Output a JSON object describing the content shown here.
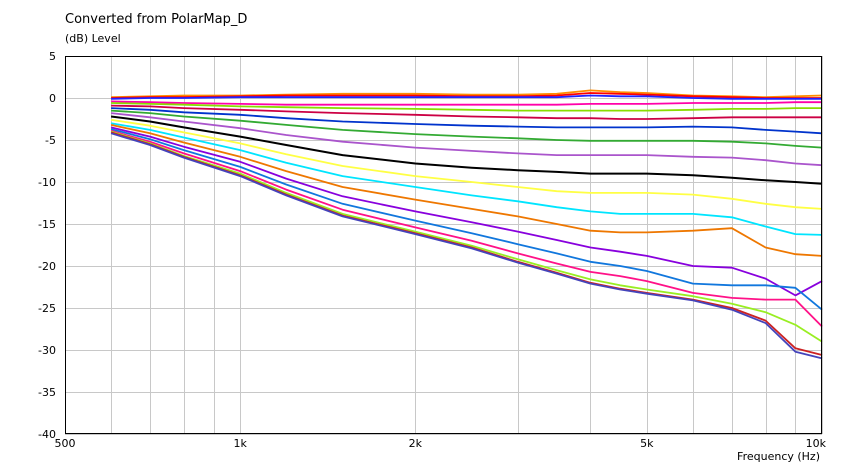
{
  "chart_data": {
    "type": "line",
    "title": "Converted from PolarMap_D",
    "ylabel": "(dB)  Level",
    "xlabel": "Frequency  (Hz)",
    "xscale": "log",
    "xlim": [
      500,
      10000
    ],
    "ylim": [
      -40,
      5
    ],
    "grid": true,
    "x_tick_labels": [
      {
        "value": 500,
        "label": "500"
      },
      {
        "value": 1000,
        "label": "1k"
      },
      {
        "value": 2000,
        "label": "2k"
      },
      {
        "value": 5000,
        "label": "5k"
      },
      {
        "value": 10000,
        "label": "10k"
      }
    ],
    "y_ticks": [
      5,
      0,
      -5,
      -10,
      -15,
      -20,
      -25,
      -30,
      -35,
      -40
    ],
    "x": [
      600,
      700,
      800,
      1000,
      1200,
      1500,
      2000,
      2500,
      3000,
      3500,
      4000,
      4500,
      5000,
      6000,
      7000,
      8000,
      9000,
      10000
    ],
    "series": [
      {
        "color": "#ff8c00",
        "values": [
          0.1,
          0.2,
          0.3,
          0.3,
          0.4,
          0.5,
          0.5,
          0.4,
          0.4,
          0.5,
          0.9,
          0.7,
          0.6,
          0.3,
          0.2,
          0.1,
          0.2,
          0.3
        ]
      },
      {
        "color": "#ff0000",
        "values": [
          0.0,
          0.1,
          0.1,
          0.2,
          0.3,
          0.3,
          0.3,
          0.2,
          0.2,
          0.3,
          0.6,
          0.5,
          0.4,
          0.2,
          0.1,
          0.0,
          0.0,
          0.0
        ]
      },
      {
        "color": "#2222ff",
        "values": [
          -0.1,
          0.0,
          0.0,
          0.1,
          0.1,
          0.1,
          0.1,
          0.1,
          0.1,
          0.1,
          0.3,
          0.2,
          0.2,
          0.0,
          -0.1,
          -0.1,
          -0.1,
          -0.1
        ]
      },
      {
        "color": "#ff00aa",
        "values": [
          -0.4,
          -0.5,
          -0.6,
          -0.7,
          -0.8,
          -0.8,
          -0.8,
          -0.8,
          -0.8,
          -0.8,
          -0.7,
          -0.7,
          -0.7,
          -0.6,
          -0.6,
          -0.6,
          -0.5,
          -0.5
        ]
      },
      {
        "color": "#88dd00",
        "values": [
          -0.6,
          -0.7,
          -0.8,
          -1.0,
          -1.1,
          -1.2,
          -1.3,
          -1.4,
          -1.5,
          -1.5,
          -1.5,
          -1.5,
          -1.5,
          -1.4,
          -1.3,
          -1.3,
          -1.2,
          -1.2
        ]
      },
      {
        "color": "#cc0044",
        "values": [
          -0.9,
          -1.0,
          -1.2,
          -1.4,
          -1.6,
          -1.8,
          -2.0,
          -2.2,
          -2.3,
          -2.4,
          -2.4,
          -2.5,
          -2.5,
          -2.4,
          -2.3,
          -2.3,
          -2.3,
          -2.3
        ]
      },
      {
        "color": "#0033cc",
        "values": [
          -1.2,
          -1.4,
          -1.7,
          -2.0,
          -2.4,
          -2.8,
          -3.1,
          -3.3,
          -3.4,
          -3.5,
          -3.5,
          -3.5,
          -3.5,
          -3.4,
          -3.5,
          -3.8,
          -4.0,
          -4.2
        ]
      },
      {
        "color": "#33aa33",
        "values": [
          -1.5,
          -1.8,
          -2.2,
          -2.7,
          -3.2,
          -3.8,
          -4.3,
          -4.6,
          -4.8,
          -5.0,
          -5.1,
          -5.1,
          -5.1,
          -5.1,
          -5.2,
          -5.4,
          -5.7,
          -5.9
        ]
      },
      {
        "color": "#aa55cc",
        "values": [
          -1.8,
          -2.3,
          -2.8,
          -3.6,
          -4.4,
          -5.2,
          -5.9,
          -6.3,
          -6.6,
          -6.8,
          -6.8,
          -6.8,
          -6.8,
          -7.0,
          -7.1,
          -7.4,
          -7.8,
          -8.0
        ]
      },
      {
        "color": "#000000",
        "values": [
          -2.2,
          -2.8,
          -3.5,
          -4.6,
          -5.6,
          -6.8,
          -7.8,
          -8.3,
          -8.6,
          -8.8,
          -9.0,
          -9.0,
          -9.0,
          -9.2,
          -9.5,
          -9.8,
          -10.0,
          -10.2
        ]
      },
      {
        "color": "#ffff44",
        "values": [
          -2.6,
          -3.3,
          -4.1,
          -5.4,
          -6.7,
          -8.1,
          -9.3,
          -10.0,
          -10.6,
          -11.1,
          -11.3,
          -11.3,
          -11.3,
          -11.5,
          -12.0,
          -12.6,
          -13.0,
          -13.2
        ]
      },
      {
        "color": "#00e5ff",
        "values": [
          -3.0,
          -3.8,
          -4.7,
          -6.2,
          -7.7,
          -9.3,
          -10.6,
          -11.6,
          -12.3,
          -13.0,
          -13.5,
          -13.8,
          -13.8,
          -13.8,
          -14.2,
          -15.3,
          -16.2,
          -16.3
        ]
      },
      {
        "color": "#ee7700",
        "values": [
          -3.2,
          -4.2,
          -5.3,
          -7.0,
          -8.7,
          -10.6,
          -12.1,
          -13.2,
          -14.1,
          -15.0,
          -15.8,
          -16.0,
          -16.0,
          -15.8,
          -15.5,
          -17.8,
          -18.6,
          -18.8
        ]
      },
      {
        "color": "#8800dd",
        "values": [
          -3.5,
          -4.6,
          -5.8,
          -7.6,
          -9.6,
          -11.7,
          -13.5,
          -14.8,
          -15.9,
          -16.9,
          -17.8,
          -18.3,
          -18.8,
          -20.0,
          -20.2,
          -21.5,
          -23.5,
          -21.8
        ]
      },
      {
        "color": "#1177dd",
        "values": [
          -3.7,
          -4.9,
          -6.2,
          -8.2,
          -10.3,
          -12.6,
          -14.6,
          -16.1,
          -17.4,
          -18.5,
          -19.5,
          -20.0,
          -20.6,
          -22.1,
          -22.3,
          -22.3,
          -22.6,
          -25.2
        ]
      },
      {
        "color": "#ff1188",
        "values": [
          -3.9,
          -5.2,
          -6.6,
          -8.7,
          -10.9,
          -13.3,
          -15.4,
          -17.0,
          -18.5,
          -19.7,
          -20.7,
          -21.2,
          -21.8,
          -23.2,
          -23.8,
          -24.0,
          -24.0,
          -27.2
        ]
      },
      {
        "color": "#99ee22",
        "values": [
          -4.0,
          -5.4,
          -6.9,
          -9.0,
          -11.3,
          -13.8,
          -15.9,
          -17.6,
          -19.2,
          -20.5,
          -21.6,
          -22.3,
          -22.8,
          -23.6,
          -24.5,
          -25.5,
          -27.0,
          -29.0
        ]
      },
      {
        "color": "#cc2222",
        "values": [
          -4.1,
          -5.5,
          -7.0,
          -9.2,
          -11.5,
          -14.0,
          -16.1,
          -17.8,
          -19.5,
          -20.8,
          -22.0,
          -22.7,
          -23.2,
          -24.0,
          -25.0,
          -26.5,
          -29.8,
          -30.6
        ]
      },
      {
        "color": "#4444bb",
        "values": [
          -4.2,
          -5.6,
          -7.1,
          -9.3,
          -11.6,
          -14.1,
          -16.2,
          -17.9,
          -19.6,
          -20.9,
          -22.1,
          -22.8,
          -23.3,
          -24.1,
          -25.2,
          -26.8,
          -30.2,
          -31.0
        ]
      }
    ]
  }
}
